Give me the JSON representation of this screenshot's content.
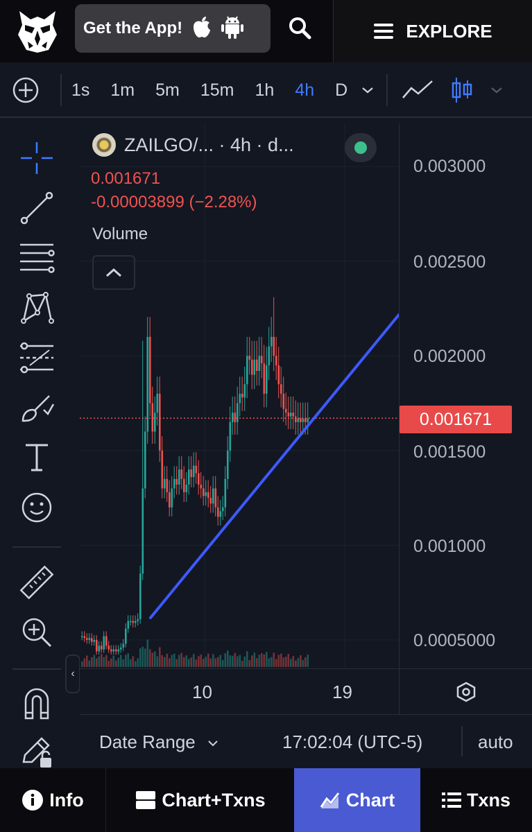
{
  "header": {
    "get_app_label": "Get the App!",
    "explore_label": "EXPLORE"
  },
  "toolbar": {
    "timeframes": [
      "1s",
      "1m",
      "5m",
      "15m",
      "1h",
      "4h",
      "D"
    ],
    "active_timeframe": "4h"
  },
  "chart": {
    "legend_title": "ZAILGO/... · 4h · d...",
    "last_price": "0.001671",
    "change": "-0.00003899 (−2.28%)",
    "volume_label": "Volume",
    "status_color": "#3ec08d",
    "current_price_tag": "0.001671"
  },
  "chart_data": {
    "type": "candlestick",
    "price_ticks": [
      "0.003000",
      "0.002500",
      "0.002000",
      "0.001500",
      "0.001000",
      "0.0005000"
    ],
    "time_ticks": [
      "10",
      "19"
    ],
    "last_price": 0.001671,
    "up_color": "#26a69a",
    "down_color": "#ef5350",
    "trendline_color": "#3d5afe"
  },
  "bottom_bar": {
    "date_range_label": "Date Range",
    "clock": "17:02:04 (UTC-5)",
    "scale_mode": "auto"
  },
  "nav": {
    "info": "Info",
    "chart_txns": "Chart+Txns",
    "chart": "Chart",
    "txns": "Txns"
  }
}
